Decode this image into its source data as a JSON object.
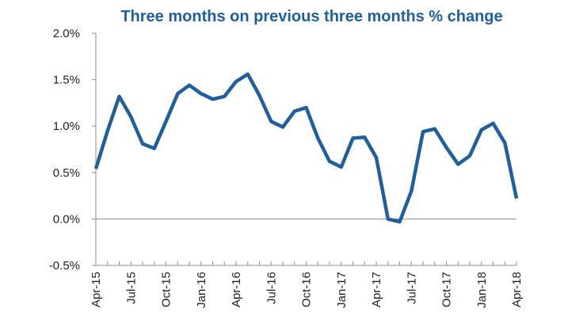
{
  "chart_data": {
    "type": "line",
    "title": "Three months on previous three months % change",
    "xlabel": "",
    "ylabel": "",
    "ylim": [
      -0.5,
      2.0
    ],
    "y_ticks": [
      "-0.5%",
      "0.0%",
      "0.5%",
      "1.0%",
      "1.5%",
      "2.0%"
    ],
    "y_tick_values": [
      -0.5,
      0.0,
      0.5,
      1.0,
      1.5,
      2.0
    ],
    "x_tick_labels": [
      "Apr-15",
      "Jul-15",
      "Oct-15",
      "Jan-16",
      "Apr-16",
      "Jul-16",
      "Oct-16",
      "Jan-17",
      "Apr-17",
      "Jul-17",
      "Oct-17",
      "Jan-18",
      "Apr-18"
    ],
    "grid": false,
    "line_color": "#1f5f9e",
    "x": [
      "Apr-15",
      "May-15",
      "Jun-15",
      "Jul-15",
      "Aug-15",
      "Sep-15",
      "Oct-15",
      "Nov-15",
      "Dec-15",
      "Jan-16",
      "Feb-16",
      "Mar-16",
      "Apr-16",
      "May-16",
      "Jun-16",
      "Jul-16",
      "Aug-16",
      "Sep-16",
      "Oct-16",
      "Nov-16",
      "Dec-16",
      "Jan-17",
      "Feb-17",
      "Mar-17",
      "Apr-17",
      "May-17",
      "Jun-17",
      "Jul-17",
      "Aug-17",
      "Sep-17",
      "Oct-17",
      "Nov-17",
      "Dec-17",
      "Jan-18",
      "Feb-18",
      "Mar-18",
      "Apr-18"
    ],
    "series": [
      {
        "values": [
          0.54,
          0.95,
          1.32,
          1.1,
          0.81,
          0.76,
          1.05,
          1.35,
          1.44,
          1.35,
          1.29,
          1.32,
          1.48,
          1.56,
          1.33,
          1.05,
          0.99,
          1.16,
          1.2,
          0.87,
          0.62,
          0.56,
          0.87,
          0.88,
          0.66,
          0.0,
          -0.03,
          0.3,
          0.94,
          0.97,
          0.77,
          0.59,
          0.68,
          0.96,
          1.03,
          0.82,
          0.22
        ]
      }
    ]
  }
}
